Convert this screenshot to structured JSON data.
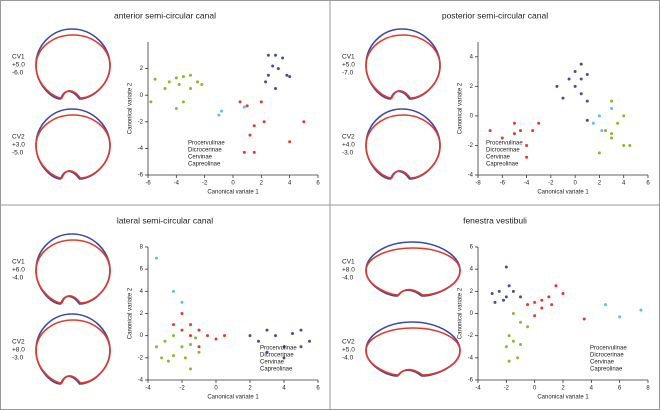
{
  "chart_data": [
    {
      "type": "scatter",
      "title": "anterior semi-circular canal",
      "xlabel": "Canonical variate 1",
      "ylabel": "Canonical variate 2",
      "cv_labels": [
        {
          "name": "CV1",
          "pos": "+5.0",
          "neg": "-6.0"
        },
        {
          "name": "CV2",
          "pos": "+3.0",
          "neg": "-5.0"
        }
      ],
      "xlim": [
        -6,
        6
      ],
      "xticks": [
        -6,
        -4,
        -2,
        0,
        2,
        4,
        6
      ],
      "ylim": [
        -6,
        4
      ],
      "yticks": [
        -6,
        -4,
        -2,
        0,
        2
      ],
      "legend": "lower center",
      "series": [
        {
          "name": "Procervulinae",
          "color": "#4b4ba0",
          "x": [
            2.5,
            3,
            3.5,
            2.8,
            3.2,
            2.5,
            3.8,
            4,
            2.3,
            3
          ],
          "y": [
            3,
            3,
            2.8,
            2.2,
            2,
            1.5,
            1.5,
            1.4,
            1,
            0.5
          ]
        },
        {
          "name": "Dicrocerinae",
          "color": "#5bc0e8",
          "x": [
            -1,
            -0.8,
            0.8
          ],
          "y": [
            -1.5,
            -1.2,
            -0.9
          ]
        },
        {
          "name": "Cervinae",
          "color": "#8cb82a",
          "x": [
            -5.5,
            -4.8,
            -4.5,
            -4,
            -3.8,
            -3.5,
            -3,
            -3,
            -2.5,
            -2.2,
            -3.5,
            -4,
            -5.8
          ],
          "y": [
            1.2,
            0.5,
            1,
            1.3,
            0.8,
            1.4,
            1.5,
            0.5,
            1,
            0.8,
            -0.5,
            -1,
            -0.5
          ]
        },
        {
          "name": "Capreolinae",
          "color": "#e23a2a",
          "x": [
            0.5,
            1,
            2,
            2.2,
            1.5,
            1.2,
            0.8,
            1.5,
            4,
            5
          ],
          "y": [
            -0.5,
            -0.8,
            -0.5,
            -2,
            -2.3,
            -3,
            -4.3,
            -4.3,
            -3.5,
            -2
          ]
        }
      ]
    },
    {
      "type": "scatter",
      "title": "posterior semi-circular canal",
      "xlabel": "Canonical variate 1",
      "ylabel": "Canonical variate 2",
      "cv_labels": [
        {
          "name": "CV1",
          "pos": "+5.0",
          "neg": "-7.0"
        },
        {
          "name": "CV2",
          "pos": "+4.0",
          "neg": "-3.0"
        }
      ],
      "xlim": [
        -8,
        6
      ],
      "xticks": [
        -8,
        -6,
        -4,
        -2,
        0,
        2,
        4,
        6
      ],
      "ylim": [
        -4,
        5
      ],
      "yticks": [
        -4,
        -2,
        0,
        2,
        4
      ],
      "legend": "lower left",
      "series": [
        {
          "name": "Procervulinae",
          "color": "#4b4ba0",
          "x": [
            0,
            0.5,
            0.5,
            1,
            -0.5,
            -1.5,
            0,
            0.5,
            -1,
            1,
            1
          ],
          "y": [
            3,
            3.5,
            2.5,
            2.8,
            2.5,
            2,
            2,
            1.5,
            1.2,
            1,
            -0.3
          ]
        },
        {
          "name": "Dicrocerinae",
          "color": "#5bc0e8",
          "x": [
            1.5,
            2,
            3,
            2.2
          ],
          "y": [
            -0.5,
            0,
            0.5,
            -1
          ]
        },
        {
          "name": "Cervinae",
          "color": "#8cb82a",
          "x": [
            3,
            4,
            3.5,
            3,
            4,
            2.5,
            2,
            3,
            4.5
          ],
          "y": [
            1,
            0,
            -0.5,
            -1.5,
            -2,
            -1,
            -2.5,
            -1.2,
            -2
          ]
        },
        {
          "name": "Capreolinae",
          "color": "#e23a2a",
          "x": [
            -7,
            -6,
            -5,
            -4.5,
            -3.5,
            -3,
            -4,
            -4,
            -5
          ],
          "y": [
            -1,
            -1.5,
            -0.5,
            -1,
            -1,
            -0.5,
            -2,
            -2.8,
            -1.2
          ]
        }
      ]
    },
    {
      "type": "scatter",
      "title": "lateral semi-circular canal",
      "xlabel": "Canonical variate 1",
      "ylabel": "Canonical variate 2",
      "cv_labels": [
        {
          "name": "CV1",
          "pos": "+6.0",
          "neg": "-4.0"
        },
        {
          "name": "CV2",
          "pos": "+8.0",
          "neg": "-3.0"
        }
      ],
      "xlim": [
        -4,
        6
      ],
      "xticks": [
        -4,
        -2,
        0,
        2,
        4,
        6
      ],
      "ylim": [
        -4,
        8
      ],
      "yticks": [
        -4,
        -2,
        0,
        2,
        4,
        6,
        8
      ],
      "legend": "lower right",
      "series": [
        {
          "name": "Procervulinae",
          "color": "#4b4ba0",
          "x": [
            2,
            2.5,
            3,
            3.5,
            4,
            4.5,
            5,
            5,
            5.5,
            4,
            3
          ],
          "y": [
            0,
            -0.5,
            0.5,
            0,
            -1,
            0.2,
            0.5,
            -1,
            -0.5,
            -2,
            -1.5
          ]
        },
        {
          "name": "Dicrocerinae",
          "color": "#5bc0e8",
          "x": [
            -3.5,
            -2.5,
            -2
          ],
          "y": [
            7,
            4,
            3
          ]
        },
        {
          "name": "Cervinae",
          "color": "#8cb82a",
          "x": [
            -3.5,
            -3,
            -2.5,
            -2,
            -1.8,
            -1.5,
            -1,
            -3.2,
            -2.5,
            -1.5,
            -2.8,
            -1.2
          ],
          "y": [
            -1,
            -0.5,
            0,
            -1,
            -2,
            -0.8,
            -1.5,
            -2,
            -1.8,
            -3,
            -2.3,
            -0.2
          ]
        },
        {
          "name": "Capreolinae",
          "color": "#e23a2a",
          "x": [
            -2.5,
            -2,
            -1.5,
            -1,
            -0.5,
            0.5,
            0,
            -2,
            -1.5,
            -1
          ],
          "y": [
            1,
            0.5,
            0,
            0.5,
            0,
            0,
            -0.3,
            2,
            1,
            -1
          ]
        }
      ]
    },
    {
      "type": "scatter",
      "title": "fenestra vestibuli",
      "xlabel": "Canonical variate 1",
      "ylabel": "Canonical variate 2",
      "cv_labels": [
        {
          "name": "CV1",
          "pos": "+8.0",
          "neg": "-4.0"
        },
        {
          "name": "CV2",
          "pos": "+5.0",
          "neg": "-4.0"
        }
      ],
      "xlim": [
        -4,
        8
      ],
      "xticks": [
        -4,
        -2,
        0,
        2,
        4,
        6,
        8
      ],
      "ylim": [
        -6,
        6
      ],
      "yticks": [
        -6,
        -4,
        -2,
        0,
        2,
        4,
        6
      ],
      "legend": "lower right",
      "series": [
        {
          "name": "Procervulinae",
          "color": "#4b4ba0",
          "x": [
            -2,
            -2.5,
            -2,
            -1.5,
            -2.8,
            -1.8,
            -1,
            -2.2,
            -3
          ],
          "y": [
            4.2,
            2,
            1.5,
            2,
            1,
            2.5,
            1.5,
            1.2,
            1.8
          ]
        },
        {
          "name": "Dicrocerinae",
          "color": "#5bc0e8",
          "x": [
            5,
            6,
            7.5
          ],
          "y": [
            0.8,
            -0.3,
            0.3
          ]
        },
        {
          "name": "Cervinae",
          "color": "#8cb82a",
          "x": [
            -1.5,
            -1,
            -1.8,
            -1.5,
            -1,
            -2,
            -1.2,
            -0.5,
            -1.8
          ],
          "y": [
            0,
            -0.8,
            -2,
            -2.5,
            -2.8,
            -3,
            -4,
            -1.2,
            -4.3
          ]
        },
        {
          "name": "Capreolinae",
          "color": "#e23a2a",
          "x": [
            -0.5,
            0,
            0.5,
            1,
            1.5,
            1.2,
            0.5,
            2,
            0,
            3.5
          ],
          "y": [
            0.8,
            1,
            1.2,
            1.5,
            2.5,
            0.8,
            0.5,
            1.8,
            -0.2,
            -0.5
          ]
        }
      ]
    }
  ]
}
